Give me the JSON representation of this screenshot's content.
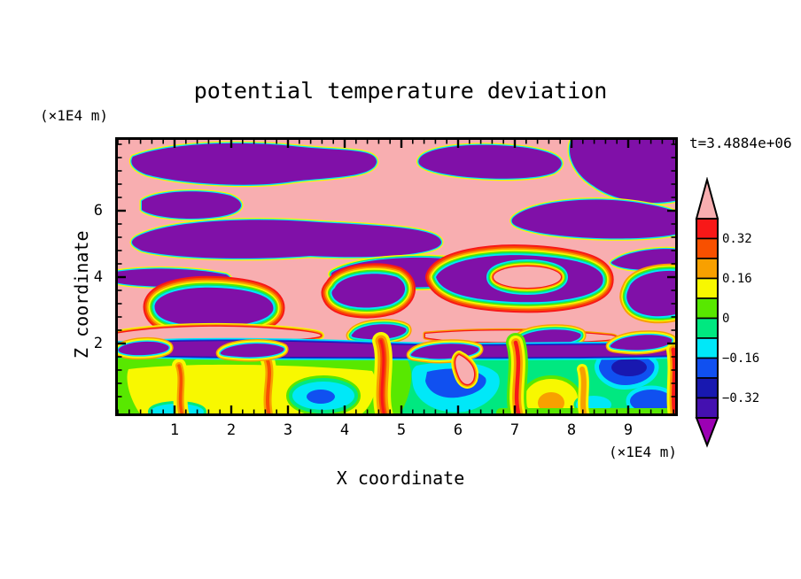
{
  "title": "potential temperature deviation",
  "annotations": {
    "time_label": "t=3.4884e+06",
    "z_axis_unit": "(×1E4 m)",
    "x_axis_unit": "(×1E4 m)"
  },
  "axes": {
    "x": {
      "label": "X coordinate",
      "tick_labels": [
        "1",
        "2",
        "3",
        "4",
        "5",
        "6",
        "7",
        "8",
        "9"
      ],
      "range": [
        0,
        9.9
      ],
      "major_tick_interval": 1.0,
      "minor_tick_interval": 0.2
    },
    "z": {
      "label": "Z coordinate",
      "tick_labels": [
        "6",
        "4",
        "2"
      ],
      "range": [
        0,
        8.2
      ],
      "major_tick_interval": 2.0,
      "minor_tick_interval": 0.4
    }
  },
  "colorbar": {
    "tick_labels": [
      "0.32",
      "0.16",
      "0",
      "−0.16",
      "−0.32"
    ],
    "tick_values": [
      0.32,
      0.16,
      0,
      -0.16,
      -0.32
    ],
    "range": [
      -0.4,
      0.4
    ],
    "segments_top_to_bottom": [
      "red",
      "orangered",
      "orange",
      "yellow",
      "chartreuse",
      "springgreen",
      "cyan",
      "blue",
      "navy",
      "indigo"
    ],
    "over_arrow_color_name": "pink",
    "under_arrow_color_name": "arrowpurple"
  },
  "palette": {
    "pink": "#F8AEB0",
    "red": "#F81818",
    "orangered": "#F85000",
    "orange": "#F8A000",
    "yellow": "#F8F800",
    "chartreuse": "#58E800",
    "springgreen": "#00E880",
    "cyan": "#00E8F8",
    "blue": "#1050F0",
    "navy": "#1818B0",
    "indigo": "#4410B0",
    "purple": "#8010A8",
    "arrowpurple": "#9C00B4",
    "frame": "#000000"
  },
  "chart_data": {
    "type": "heatmap",
    "subtype": "filled-contour",
    "title": "potential temperature deviation",
    "xlabel": "X coordinate (×1E4 m)",
    "ylabel": "Z coordinate (×1E4 m)",
    "time": "t=3.4884e+06",
    "x_range": [
      0,
      9.9
    ],
    "z_range": [
      0,
      8.2
    ],
    "contour_levels": [
      -0.4,
      -0.32,
      -0.24,
      -0.16,
      -0.08,
      0,
      0.08,
      0.16,
      0.24,
      0.32,
      0.4
    ],
    "band_colors_low_to_high": [
      "arrowpurple",
      "indigo",
      "navy",
      "blue",
      "cyan",
      "springgreen",
      "chartreuse",
      "yellow",
      "orange",
      "orangered",
      "red",
      "pink"
    ],
    "legend_position": "right",
    "grid": false,
    "field_structure": [
      {
        "z_range": [
          4.3,
          8.2
        ],
        "description": "stably stratified wave region: alternating horizontal pink (>0.40) and purple (<-0.40) layers with very thin rainbow transition edges"
      },
      {
        "z_range": [
          2.3,
          4.3
        ],
        "description": "pink background with purple blobs ringed by thick rainbow halos (red-orange-yellow-green-cyan-blue bands); busy speckled mixing zone near z≈2.3-3"
      },
      {
        "z_range": [
          0,
          2.3
        ],
        "description": "convective mixed layer: spring-green/chartreuse/yellow background, warm orange-red rising plumes near x≈1.1, 2.7, 4.7, 7.2, 8.3, 9.8; cool cyan/blue pools with navy cores near x≈3.5, 5.7, 6.3, 8.8, 9.4; sharp navy-blue capped interface at z≈2.2"
      }
    ]
  }
}
